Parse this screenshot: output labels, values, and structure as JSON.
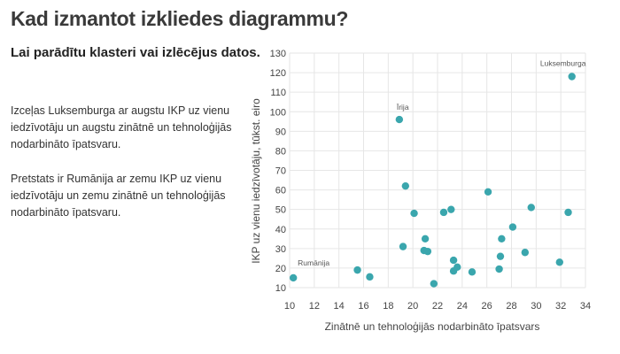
{
  "page": {
    "title": "Kad izmantot izkliedes diagrammu?",
    "subtitle": "Lai parādītu klasteri vai izlēcējus datos.",
    "paragraph_1": "Izceļas Luksemburga ar augstu IKP uz vienu iedzīvotāju un augstu zinātnē un tehnoloģijās nodarbināto īpatsvaru.",
    "paragraph_2": "Pretstats ir Rumānija ar zemu IKP uz vienu iedzīvotāju un zemu zinātnē un tehnoloģijās nodarbināto īpatsvaru."
  },
  "colors": {
    "point": "#3aa6ad",
    "grid": "#e6e6e6",
    "axis_text": "#444444",
    "annotation_text": "#555555"
  },
  "chart_data": {
    "type": "scatter",
    "xlabel": "Zinātnē un tehnoloģijās nodarbināto īpatsvars",
    "ylabel": "IKP uz vienu iedzīvotāju, tūkst. eiro",
    "xlim": [
      10,
      34
    ],
    "ylim": [
      10,
      130
    ],
    "xticks": [
      10,
      12,
      14,
      16,
      18,
      20,
      22,
      24,
      26,
      28,
      30,
      32,
      34
    ],
    "yticks": [
      10,
      20,
      30,
      40,
      50,
      60,
      70,
      80,
      90,
      100,
      110,
      120,
      130
    ],
    "grid": true,
    "points": [
      {
        "x": 10.3,
        "y": 15
      },
      {
        "x": 15.5,
        "y": 19
      },
      {
        "x": 16.5,
        "y": 15.5
      },
      {
        "x": 18.9,
        "y": 96
      },
      {
        "x": 19.2,
        "y": 31
      },
      {
        "x": 19.4,
        "y": 62
      },
      {
        "x": 20.1,
        "y": 48
      },
      {
        "x": 20.9,
        "y": 29
      },
      {
        "x": 21.0,
        "y": 35
      },
      {
        "x": 21.2,
        "y": 28.5
      },
      {
        "x": 21.7,
        "y": 12
      },
      {
        "x": 22.5,
        "y": 48.5
      },
      {
        "x": 23.1,
        "y": 50
      },
      {
        "x": 23.3,
        "y": 24
      },
      {
        "x": 23.3,
        "y": 18.5
      },
      {
        "x": 23.6,
        "y": 20.5
      },
      {
        "x": 24.8,
        "y": 18
      },
      {
        "x": 26.1,
        "y": 59
      },
      {
        "x": 27.0,
        "y": 19.5
      },
      {
        "x": 27.1,
        "y": 26
      },
      {
        "x": 27.2,
        "y": 35
      },
      {
        "x": 28.1,
        "y": 41
      },
      {
        "x": 29.1,
        "y": 28
      },
      {
        "x": 29.6,
        "y": 51
      },
      {
        "x": 31.9,
        "y": 23
      },
      {
        "x": 32.6,
        "y": 48.5
      },
      {
        "x": 32.9,
        "y": 118
      }
    ],
    "annotations": [
      {
        "text": "Luksemburga",
        "x": 32.9,
        "y": 118
      },
      {
        "text": "Īrija",
        "x": 18.9,
        "y": 96
      },
      {
        "text": "Rumānija",
        "x": 10.3,
        "y": 15
      }
    ]
  }
}
